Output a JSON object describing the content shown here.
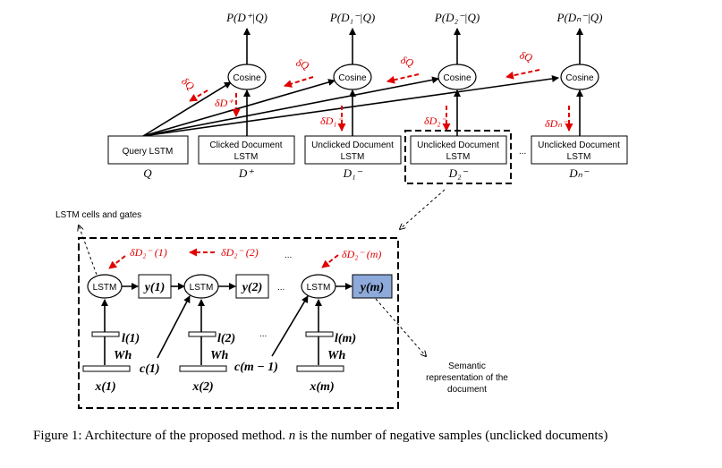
{
  "top": {
    "probs": [
      "P(D⁺|Q)",
      "P(D₁⁻|Q)",
      "P(D₂⁻|Q)",
      "P(Dₙ⁻|Q)"
    ],
    "cosine_label": "Cosine",
    "deltas_q": [
      "δQ",
      "δQ",
      "δQ",
      "δQ"
    ],
    "deltas_d": [
      "δD⁺",
      "δD₁⁻",
      "δD₂⁻",
      "δDₙ⁻"
    ],
    "query_box": "Query LSTM",
    "query_symbol": "Q",
    "doc_boxes": [
      {
        "line1": "Clicked Document",
        "line2": "LSTM",
        "symbol": "D⁺"
      },
      {
        "line1": "Unclicked Document",
        "line2": "LSTM",
        "symbol": "D₁⁻"
      },
      {
        "line1": "Unclicked Document",
        "line2": "LSTM",
        "symbol": "D₂⁻"
      },
      {
        "line1": "Unclicked Document",
        "line2": "LSTM",
        "symbol": "Dₙ⁻"
      }
    ],
    "ellipsis": "..."
  },
  "bottom": {
    "cells_label": "LSTM cells and gates",
    "lstm_label": "LSTM",
    "deltas": [
      "δD₂⁻ (1)",
      "δD₂⁻ (2)",
      "δD₂⁻ (m)"
    ],
    "outputs": [
      "y(1)",
      "y(2)",
      "y(m)"
    ],
    "l_labels": [
      "l(1)",
      "l(2)",
      "l(m)"
    ],
    "w_labels": [
      "Wh",
      "Wh",
      "Wh"
    ],
    "x_labels": [
      "x(1)",
      "x(2)",
      "x(m)"
    ],
    "c_labels": [
      "c(1)",
      "c(m − 1)"
    ],
    "dots": [
      "...",
      "...",
      "...",
      "...",
      "..."
    ],
    "semantic_label": [
      "Semantic",
      "representation of the",
      "document"
    ],
    "highlight_color": "#8eaadb"
  },
  "caption": {
    "prefix": "Figure 1: Architecture of the proposed method.",
    "var": "n",
    "suffix": "is the number of negative samples (unclicked documents)"
  }
}
